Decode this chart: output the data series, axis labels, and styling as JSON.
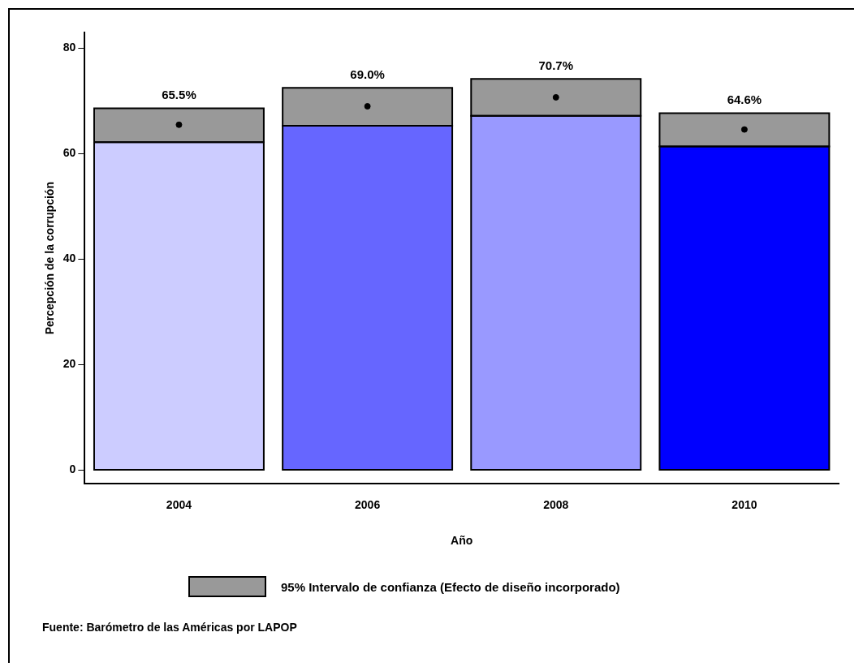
{
  "chart_data": {
    "type": "bar",
    "xlabel": "Año",
    "ylabel": "Percepción de la corrupción",
    "categories": [
      "2004",
      "2006",
      "2008",
      "2010"
    ],
    "stacked": true,
    "series": [
      {
        "colors": [
          "#ccccff",
          "#6666ff",
          "#9999ff",
          "#0000ff"
        ],
        "values": [
          62.2,
          65.3,
          67.2,
          61.4
        ]
      },
      {
        "name": "95% Intervalo de confianza (Efecto de diseño incorporado)",
        "color": "#999999",
        "values": [
          6.4,
          7.2,
          7.0,
          6.3
        ]
      },
      {
        "type": "scatter",
        "color": "#000000",
        "values": [
          65.5,
          69.0,
          70.7,
          64.6
        ],
        "value_labels": [
          "65.5%",
          "69.0%",
          "70.7%",
          "64.6%"
        ]
      }
    ],
    "ylim": [
      -2.6,
      83
    ],
    "yticks": [
      0,
      20,
      40,
      60,
      80
    ],
    "grid": false,
    "legend": "bottom",
    "marker": "circle",
    "annotations": [
      "Fuente: Barómetro de las Américas por LAPOP"
    ]
  }
}
